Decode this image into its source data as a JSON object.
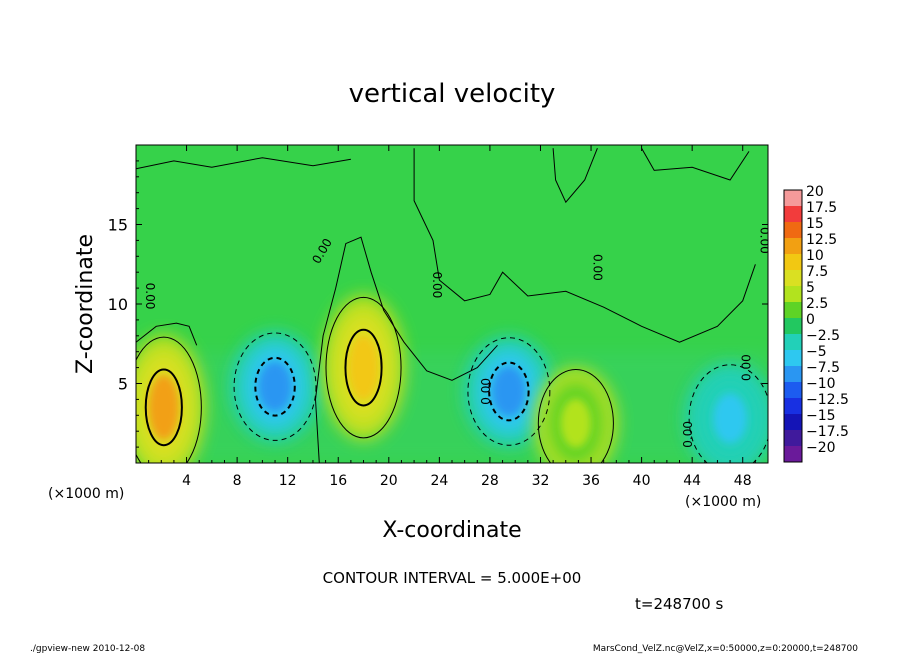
{
  "chart_data": {
    "type": "heatmap",
    "title": "vertical velocity",
    "xlabel": "X-coordinate",
    "ylabel": "Z-coordinate",
    "x_unit": "(×1000 m)",
    "y_unit": "(×1000 m)",
    "xlim": [
      0,
      50
    ],
    "ylim": [
      0,
      20
    ],
    "x_ticks": [
      4,
      8,
      12,
      16,
      20,
      24,
      28,
      32,
      36,
      40,
      44,
      48
    ],
    "y_ticks": [
      5,
      10,
      15
    ],
    "contour_interval_text": "CONTOUR INTERVAL = 5.000E+00",
    "contour_label": "0.00",
    "colorbar": {
      "labels": [
        "20",
        "17.5",
        "15",
        "12.5",
        "10",
        "7.5",
        "5",
        "2.5",
        "0",
        "−2.5",
        "−5",
        "−7.5",
        "−10",
        "−12.5",
        "−15",
        "−17.5",
        "−20"
      ],
      "colors": [
        "#f59a9a",
        "#f23c3c",
        "#f06a12",
        "#f2a012",
        "#f2c812",
        "#dae022",
        "#b2e31e",
        "#5ed326",
        "#22c860",
        "#22d0b8",
        "#2ec8f0",
        "#2a96f2",
        "#1c5cf0",
        "#1830e2",
        "#1414b6",
        "#401a9c",
        "#6a1a9a"
      ]
    },
    "features": [
      {
        "type": "updraft",
        "x": 2.2,
        "z": 3.5,
        "value": 12.5
      },
      {
        "type": "downdraft",
        "x": 11.0,
        "z": 4.8,
        "value": -7.5
      },
      {
        "type": "updraft",
        "x": 18.0,
        "z": 6.0,
        "value": 10
      },
      {
        "type": "downdraft",
        "x": 29.5,
        "z": 4.5,
        "value": -7.5
      },
      {
        "type": "updraft",
        "x": 34.8,
        "z": 2.5,
        "value": 5
      },
      {
        "type": "downdraft",
        "x": 47.0,
        "z": 2.8,
        "value": -5
      }
    ],
    "time_label": "t=248700 s"
  },
  "footer": {
    "left": "./gpview-new  2010-12-08",
    "right": "MarsCond_VelZ.nc@VelZ,x=0:50000,z=0:20000,t=248700"
  }
}
